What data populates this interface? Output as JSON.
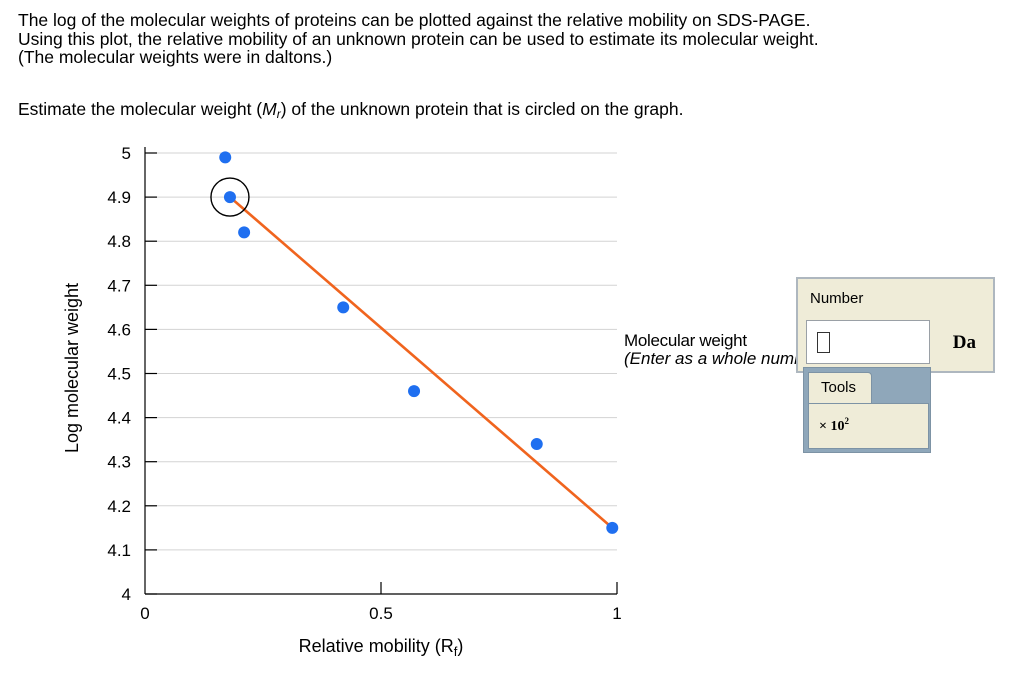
{
  "prompt": {
    "line1": "The log of the molecular weights of proteins can be plotted against the relative mobility on SDS-PAGE.",
    "line2": "Using this plot, the relative mobility of an unknown protein can be used to estimate its molecular weight.",
    "line3": "(The molecular weights were in daltons.)"
  },
  "question": {
    "before": "Estimate the molecular weight (",
    "symbol": "M",
    "subscript": "r",
    "after": ") of the unknown protein that is circled on the graph."
  },
  "chart_data": {
    "type": "scatter",
    "xlabel_main": "Relative mobility (R",
    "xlabel_sub": "f",
    "xlabel_end": ")",
    "ylabel": "Log molecular weight",
    "xlim": [
      0,
      1
    ],
    "ylim": [
      4,
      5
    ],
    "x_ticks": [
      {
        "value": 0,
        "label": "0"
      },
      {
        "value": 0.5,
        "label": "0.5"
      },
      {
        "value": 1,
        "label": "1"
      }
    ],
    "y_ticks": [
      {
        "value": 4,
        "label": "4"
      },
      {
        "value": 4.1,
        "label": "4.1"
      },
      {
        "value": 4.2,
        "label": "4.2"
      },
      {
        "value": 4.3,
        "label": "4.3"
      },
      {
        "value": 4.4,
        "label": "4.4"
      },
      {
        "value": 4.5,
        "label": "4.5"
      },
      {
        "value": 4.6,
        "label": "4.6"
      },
      {
        "value": 4.7,
        "label": "4.7"
      },
      {
        "value": 4.8,
        "label": "4.8"
      },
      {
        "value": 4.9,
        "label": "4.9"
      },
      {
        "value": 5,
        "label": "5"
      }
    ],
    "points": [
      {
        "x": 0.17,
        "y": 4.99
      },
      {
        "x": 0.18,
        "y": 4.9
      },
      {
        "x": 0.21,
        "y": 4.82
      },
      {
        "x": 0.42,
        "y": 4.65
      },
      {
        "x": 0.57,
        "y": 4.46
      },
      {
        "x": 0.83,
        "y": 4.34
      },
      {
        "x": 0.99,
        "y": 4.15
      }
    ],
    "circled_point_index": 1,
    "fit_line": {
      "x1": 0.18,
      "y1": 4.9,
      "x2": 0.99,
      "y2": 4.15
    },
    "grid": true,
    "colors": {
      "points": "#1f6ff0",
      "fit_line": "#f0641e",
      "grid": "#d3d3d3",
      "axis": "#000000"
    }
  },
  "answer": {
    "label": "Molecular weight",
    "hint": "(Enter as a whole number)",
    "number_label": "Number",
    "value": "",
    "unit": "Da",
    "tools_tab": "Tools",
    "sci_base": "× 10",
    "sci_exp": "2"
  }
}
